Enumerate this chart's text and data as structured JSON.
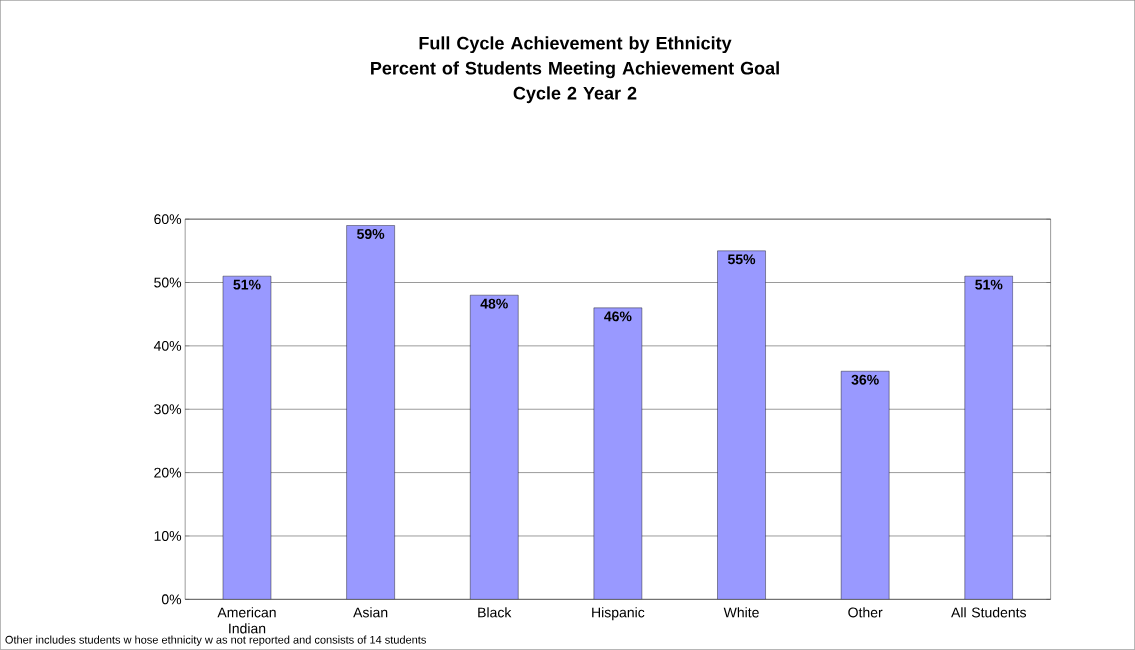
{
  "chart_data": {
    "type": "bar",
    "title": "Full Cycle Achievement by Ethnicity",
    "subtitle": "Percent of Students Meeting Achievement Goal\nCycle 2 Year 2",
    "categories": [
      "American Indian",
      "Asian",
      "Black",
      "Hispanic",
      "White",
      "Other",
      "All Students"
    ],
    "values": [
      51,
      59,
      48,
      46,
      55,
      36,
      51
    ],
    "value_labels": [
      "51%",
      "59%",
      "48%",
      "46%",
      "55%",
      "36%",
      "51%"
    ],
    "color": "#9999ff",
    "ylim": [
      0,
      60
    ],
    "yticks": [
      {
        "value": 0,
        "label": "0%"
      },
      {
        "value": 10,
        "label": "10%"
      },
      {
        "value": 20,
        "label": "20%"
      },
      {
        "value": 30,
        "label": "30%"
      },
      {
        "value": 40,
        "label": "40%"
      },
      {
        "value": 50,
        "label": "50%"
      },
      {
        "value": 60,
        "label": "60%"
      }
    ],
    "grid": "y",
    "annotations": [
      "Other includes students w hose ethnicity w as not reported and consists of 14 students"
    ]
  }
}
